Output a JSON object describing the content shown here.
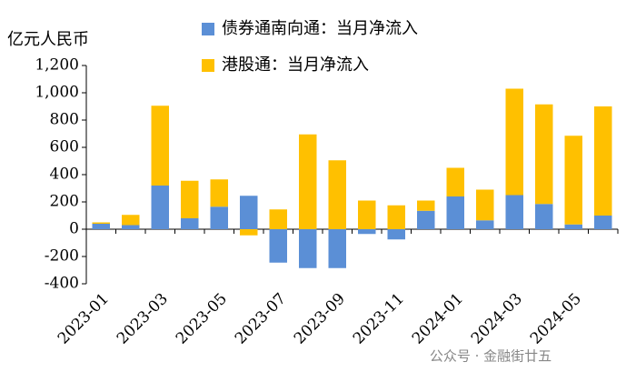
{
  "chart_data": {
    "type": "bar",
    "stacked": true,
    "y_label": "亿元人民币",
    "watermark": "公众号 · 金融街廿五",
    "categories": [
      "2023-01",
      null,
      "2023-03",
      null,
      "2023-05",
      null,
      "2023-07",
      null,
      "2023-09",
      null,
      "2023-11",
      null,
      "2024-01",
      null,
      "2024-03",
      null,
      "2024-05",
      null
    ],
    "series": [
      {
        "name": "债券通南向通：当月净流入",
        "color": "#5b8fd6",
        "values": [
          40,
          30,
          320,
          80,
          165,
          245,
          -245,
          -285,
          -285,
          -35,
          -75,
          135,
          240,
          65,
          250,
          185,
          35,
          100
        ]
      },
      {
        "name": "港股通：当月净流入",
        "color": "#ffc000",
        "values": [
          10,
          75,
          585,
          275,
          200,
          -45,
          145,
          695,
          505,
          210,
          175,
          75,
          210,
          225,
          780,
          730,
          650,
          800
        ]
      }
    ],
    "ylim": [
      -400,
      1200
    ],
    "yticks": [
      -400,
      -200,
      0,
      200,
      400,
      600,
      800,
      {
        "value": 1000,
        "label": "1,000"
      },
      {
        "value": 1200,
        "label": "1,200"
      }
    ]
  }
}
